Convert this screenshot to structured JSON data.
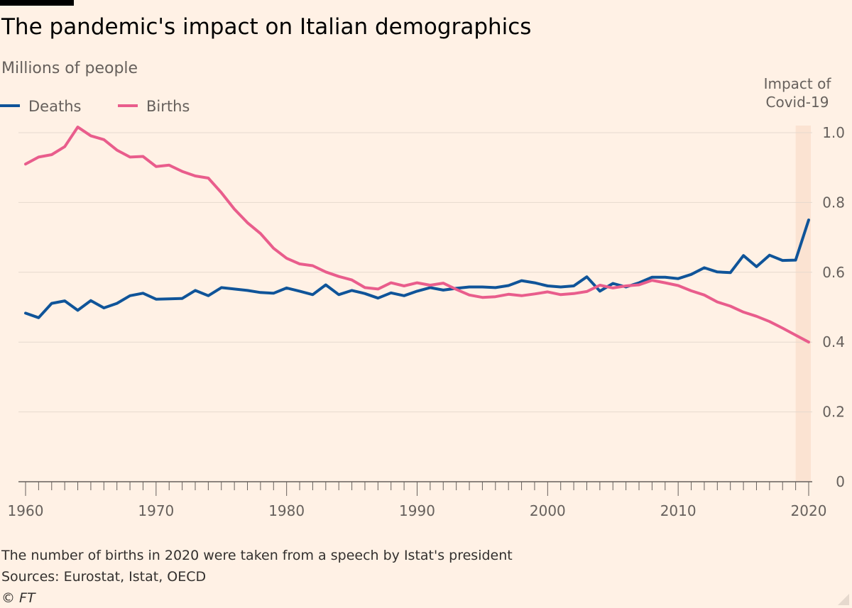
{
  "header": {
    "title": "The pandemic's impact on Italian demographics",
    "subtitle": "Millions of people"
  },
  "legend": [
    {
      "label": "Deaths",
      "color": "#0F5499"
    },
    {
      "label": "Births",
      "color": "#E95D8C"
    }
  ],
  "annotation": {
    "line1": "Impact of",
    "line2": "Covid-19",
    "color": "#FBE3D2"
  },
  "footer": {
    "note": "The number of births in 2020 were taken from a speech by Istat's president",
    "sources": "Sources: Eurostat, Istat, OECD",
    "credit": "© FT"
  },
  "chart_data": {
    "type": "line",
    "title": "The pandemic's impact on Italian demographics",
    "ylabel": "Millions of people",
    "xlim": [
      1960,
      2020
    ],
    "ylim": [
      0,
      1.0
    ],
    "x_ticks": [
      1960,
      1970,
      1980,
      1990,
      2000,
      2010,
      2020
    ],
    "y_ticks": [
      0,
      0.2,
      0.4,
      0.6,
      0.8,
      1.0
    ],
    "y_tick_labels": [
      "0",
      "0.2",
      "0.4",
      "0.6",
      "0.8",
      "1.0"
    ],
    "grid": true,
    "legend_position": "top-left",
    "shaded_region": {
      "x_start": 2019,
      "x_end": 2020
    },
    "x": [
      1960,
      1961,
      1962,
      1963,
      1964,
      1965,
      1966,
      1967,
      1968,
      1969,
      1970,
      1971,
      1972,
      1973,
      1974,
      1975,
      1976,
      1977,
      1978,
      1979,
      1980,
      1981,
      1982,
      1983,
      1984,
      1985,
      1986,
      1987,
      1988,
      1989,
      1990,
      1991,
      1992,
      1993,
      1994,
      1995,
      1996,
      1997,
      1998,
      1999,
      2000,
      2001,
      2002,
      2003,
      2004,
      2005,
      2006,
      2007,
      2008,
      2009,
      2010,
      2011,
      2012,
      2013,
      2014,
      2015,
      2016,
      2017,
      2018,
      2019,
      2020
    ],
    "series": [
      {
        "name": "Deaths",
        "color": "#0F5499",
        "values": [
          0.483,
          0.47,
          0.511,
          0.518,
          0.491,
          0.519,
          0.498,
          0.511,
          0.533,
          0.54,
          0.523,
          0.524,
          0.525,
          0.548,
          0.533,
          0.556,
          0.552,
          0.548,
          0.542,
          0.54,
          0.555,
          0.546,
          0.536,
          0.564,
          0.536,
          0.548,
          0.539,
          0.526,
          0.541,
          0.533,
          0.546,
          0.556,
          0.549,
          0.554,
          0.558,
          0.558,
          0.556,
          0.562,
          0.576,
          0.57,
          0.561,
          0.558,
          0.561,
          0.587,
          0.546,
          0.568,
          0.558,
          0.57,
          0.586,
          0.586,
          0.582,
          0.594,
          0.613,
          0.601,
          0.599,
          0.648,
          0.616,
          0.649,
          0.634,
          0.635,
          0.75
        ]
      },
      {
        "name": "Births",
        "color": "#E95D8C",
        "values": [
          0.91,
          0.93,
          0.937,
          0.96,
          1.016,
          0.991,
          0.98,
          0.95,
          0.93,
          0.932,
          0.903,
          0.907,
          0.889,
          0.876,
          0.87,
          0.828,
          0.781,
          0.742,
          0.711,
          0.669,
          0.64,
          0.624,
          0.619,
          0.601,
          0.588,
          0.578,
          0.556,
          0.552,
          0.57,
          0.561,
          0.57,
          0.563,
          0.569,
          0.551,
          0.535,
          0.528,
          0.53,
          0.537,
          0.533,
          0.538,
          0.544,
          0.536,
          0.539,
          0.545,
          0.563,
          0.555,
          0.561,
          0.564,
          0.577,
          0.57,
          0.562,
          0.547,
          0.535,
          0.515,
          0.503,
          0.486,
          0.474,
          0.459,
          0.44,
          0.42,
          0.4
        ]
      }
    ]
  }
}
